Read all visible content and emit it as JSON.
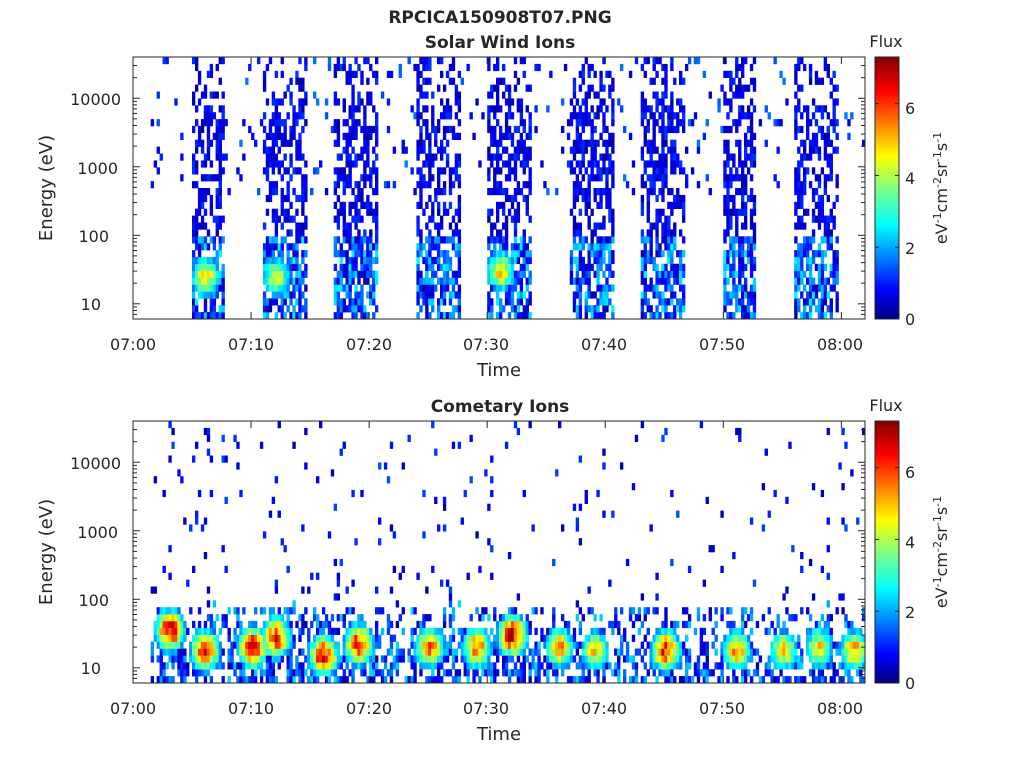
{
  "figure_title": "RPCICA150908T07.PNG",
  "colorbar": {
    "title": "Flux",
    "label": "eV-1cm-2sr-1s-1",
    "ticks": [
      "0",
      "2",
      "4",
      "6"
    ],
    "range": [
      0,
      7.3
    ],
    "colormap": "jet"
  },
  "chart_data": [
    {
      "type": "heatmap",
      "title": "Solar Wind Ions",
      "xlabel": "Time",
      "ylabel": "Energy (eV)",
      "x_ticks": [
        "07:00",
        "07:10",
        "07:20",
        "07:30",
        "07:40",
        "07:50",
        "08:00"
      ],
      "y_ticks": [
        "10",
        "100",
        "1000",
        "10000"
      ],
      "xlim": [
        "07:00",
        "08:02"
      ],
      "ylim": [
        6,
        40000
      ],
      "y_scale": "log",
      "z_range": [
        0,
        7.3
      ],
      "bursts": [
        {
          "start": "07:05",
          "end": "07:07"
        },
        {
          "start": "07:11",
          "end": "07:14"
        },
        {
          "start": "07:17",
          "end": "07:20"
        },
        {
          "start": "07:24",
          "end": "07:27"
        },
        {
          "start": "07:30",
          "end": "07:33"
        },
        {
          "start": "07:37",
          "end": "07:40"
        },
        {
          "start": "07:43",
          "end": "07:46"
        },
        {
          "start": "07:50",
          "end": "07:52"
        },
        {
          "start": "07:56",
          "end": "07:59"
        }
      ],
      "peaks": [
        {
          "time": "07:06",
          "energy_eV": 25,
          "flux": 5.0
        },
        {
          "time": "07:12",
          "energy_eV": 25,
          "flux": 4.5
        },
        {
          "time": "07:31",
          "energy_eV": 30,
          "flux": 5.0
        }
      ]
    },
    {
      "type": "heatmap",
      "title": "Cometary Ions",
      "xlabel": "Time",
      "ylabel": "Energy (eV)",
      "x_ticks": [
        "07:00",
        "07:10",
        "07:20",
        "07:30",
        "07:40",
        "07:50",
        "08:00"
      ],
      "y_ticks": [
        "10",
        "100",
        "1000",
        "10000"
      ],
      "xlim": [
        "07:00",
        "08:02"
      ],
      "ylim": [
        6,
        40000
      ],
      "y_scale": "log",
      "z_range": [
        0,
        7.3
      ],
      "peaks": [
        {
          "time": "07:03",
          "energy_eV": 35,
          "flux": 7.0
        },
        {
          "time": "07:06",
          "energy_eV": 18,
          "flux": 6.5
        },
        {
          "time": "07:10",
          "energy_eV": 20,
          "flux": 7.0
        },
        {
          "time": "07:12",
          "energy_eV": 28,
          "flux": 6.5
        },
        {
          "time": "07:16",
          "energy_eV": 15,
          "flux": 6.8
        },
        {
          "time": "07:19",
          "energy_eV": 22,
          "flux": 6.5
        },
        {
          "time": "07:25",
          "energy_eV": 20,
          "flux": 6.0
        },
        {
          "time": "07:29",
          "energy_eV": 20,
          "flux": 6.0
        },
        {
          "time": "07:32",
          "energy_eV": 30,
          "flux": 7.0
        },
        {
          "time": "07:36",
          "energy_eV": 20,
          "flux": 5.5
        },
        {
          "time": "07:39",
          "energy_eV": 18,
          "flux": 5.0
        },
        {
          "time": "07:45",
          "energy_eV": 18,
          "flux": 6.5
        },
        {
          "time": "07:51",
          "energy_eV": 18,
          "flux": 5.5
        },
        {
          "time": "07:55",
          "energy_eV": 18,
          "flux": 5.0
        },
        {
          "time": "07:58",
          "energy_eV": 20,
          "flux": 5.0
        },
        {
          "time": "08:01",
          "energy_eV": 18,
          "flux": 5.5
        }
      ]
    }
  ]
}
